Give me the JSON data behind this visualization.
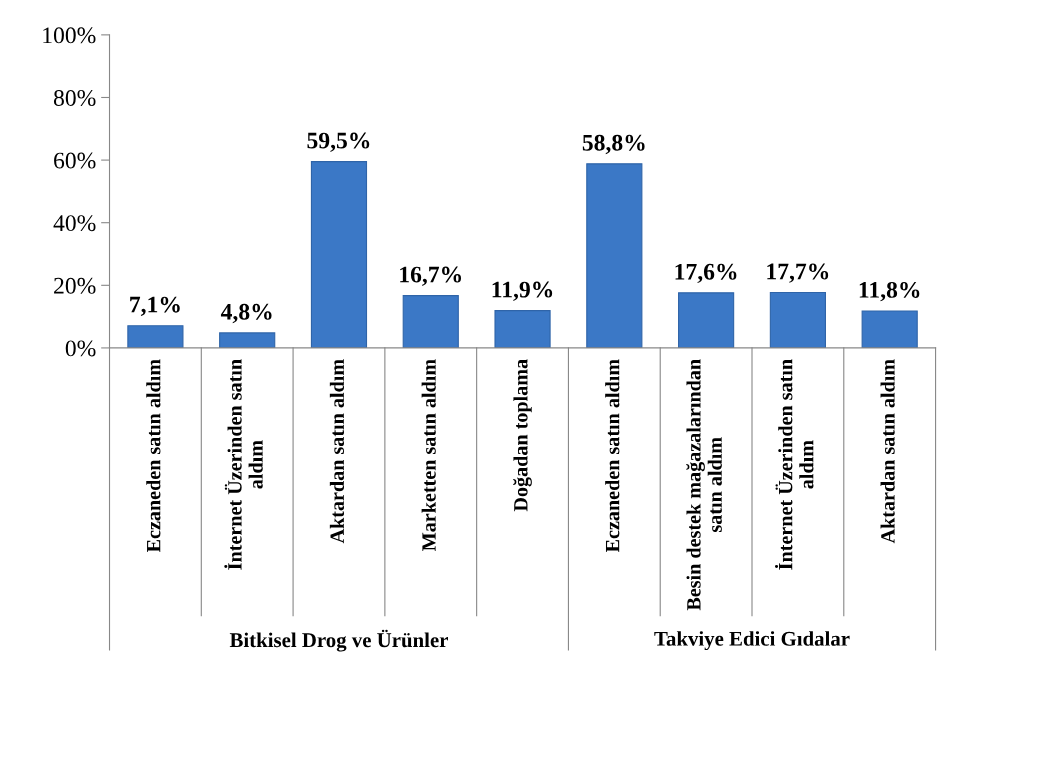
{
  "chart_data": {
    "type": "bar",
    "categories": [
      "Eczaneden satın aldım",
      "İnternet Üzerinden satın\naldım",
      "Aktardan satın aldım",
      "Marketten satın aldım",
      "Doğadan toplama",
      "Eczaneden satın aldım",
      "Besin destek mağazalarından\nsatın aldım",
      "İnternet Üzerinden satın\naldım",
      "Aktardan satın aldım"
    ],
    "values": [
      7.1,
      4.8,
      59.5,
      16.7,
      11.9,
      58.8,
      17.6,
      17.7,
      11.8
    ],
    "value_labels": [
      "7,1%",
      "4,8%",
      "59,5%",
      "16,7%",
      "11,9%",
      "58,8%",
      "17,6%",
      "17,7%",
      "11,8%"
    ],
    "color": "#3b78c6",
    "ylim": [
      0,
      100
    ],
    "yticks": [
      {
        "value": 0,
        "label": "0%"
      },
      {
        "value": 20,
        "label": "20%"
      },
      {
        "value": 40,
        "label": "40%"
      },
      {
        "value": 60,
        "label": "60%"
      },
      {
        "value": 80,
        "label": "80%"
      },
      {
        "value": 100,
        "label": "100%"
      }
    ],
    "annotations": [
      "Bitkisel Drog ve Ürünler",
      "Takviye Edici Gıdalar"
    ],
    "grid": false,
    "legend": false
  }
}
